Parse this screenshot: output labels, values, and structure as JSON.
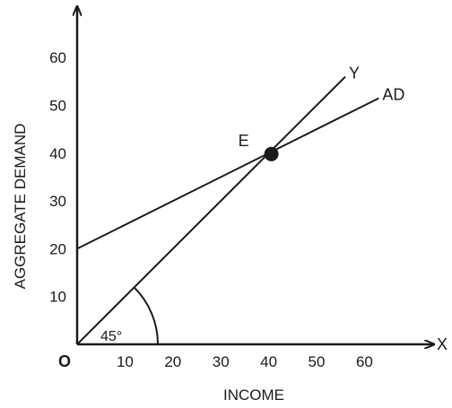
{
  "chart_data": {
    "type": "line",
    "xlabel": "INCOME",
    "ylabel": "AGGREGATE DEMAND",
    "xlim": [
      0,
      70
    ],
    "ylim": [
      0,
      68
    ],
    "x_ticks": [
      "10",
      "20",
      "30",
      "40",
      "50",
      "60"
    ],
    "y_ticks": [
      "10",
      "20",
      "30",
      "40",
      "50",
      "60"
    ],
    "origin_label": "O",
    "x_axis_end_label": "X",
    "grid": false,
    "series": [
      {
        "name": "Y",
        "x": [
          0,
          56
        ],
        "y": [
          0,
          56
        ],
        "color": "#1a1a1a"
      },
      {
        "name": "AD",
        "x": [
          0,
          63
        ],
        "y": [
          20,
          51.5
        ],
        "color": "#1a1a1a"
      }
    ],
    "intersection": {
      "label": "E",
      "x": 40,
      "y": 40
    },
    "angle_annotation": {
      "label": "45°",
      "degrees": 45
    }
  }
}
